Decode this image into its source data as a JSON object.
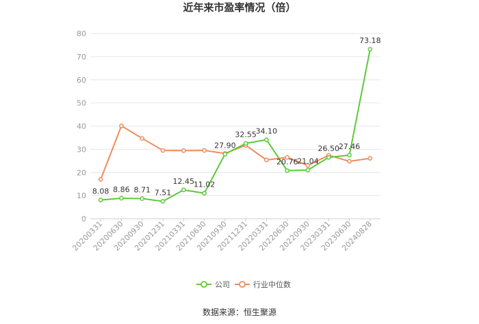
{
  "title": "近年来市盈率情况（倍）",
  "source": "数据来源：恒生聚源",
  "colors": {
    "company": "#5cc83a",
    "industry": "#f08a5d",
    "grid": "#e6e6e6"
  },
  "legend": [
    {
      "name": "公司",
      "color": "#5cc83a"
    },
    {
      "name": "行业中位数",
      "color": "#f08a5d"
    }
  ],
  "chart_data": {
    "type": "line",
    "categories": [
      "20200331",
      "20200630",
      "20200930",
      "20201231",
      "20210331",
      "20210630",
      "20210930",
      "20211231",
      "20220331",
      "20220630",
      "20220930",
      "20230331",
      "20230630",
      "20240828"
    ],
    "series": [
      {
        "name": "公司",
        "values": [
          8.08,
          8.86,
          8.71,
          7.51,
          12.45,
          11.02,
          27.9,
          32.55,
          34.1,
          20.76,
          21.04,
          26.5,
          27.46,
          73.18
        ],
        "labels": [
          "8.08",
          "8.86",
          "8.71",
          "7.51",
          "12.45",
          "11.02",
          "27.90",
          "32.55",
          "34.10",
          "20.76",
          "21.04",
          "26.50",
          "27.46",
          "73.18"
        ]
      },
      {
        "name": "行业中位数",
        "values": [
          17.0,
          40.1,
          34.7,
          29.5,
          29.4,
          29.5,
          28.2,
          31.7,
          25.4,
          26.5,
          23.0,
          27.4,
          24.8,
          26.1
        ]
      }
    ],
    "yticks": [
      "0",
      "10",
      "20",
      "30",
      "40",
      "50",
      "60",
      "70",
      "80"
    ],
    "ylim": [
      0,
      80
    ],
    "grid": true,
    "legend_position": "bottom-center"
  }
}
